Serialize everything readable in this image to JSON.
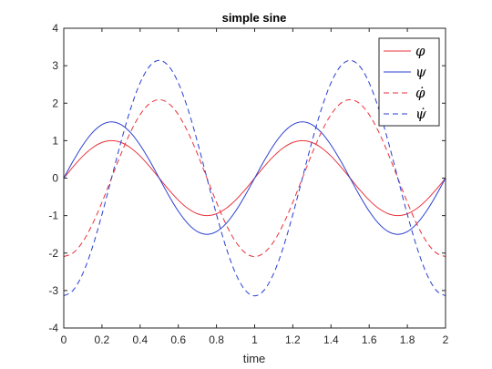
{
  "chart_data": {
    "type": "line",
    "title": "simple sine",
    "xlabel": "time",
    "ylabel": "",
    "xlim": [
      0,
      2
    ],
    "ylim": [
      -4,
      4
    ],
    "xticks": [
      0,
      0.2,
      0.4,
      0.6,
      0.8,
      1,
      1.2,
      1.4,
      1.6,
      1.8,
      2
    ],
    "xtick_labels": [
      "0",
      "0.2",
      "0.4",
      "0.6",
      "0.8",
      "1",
      "1.2",
      "1.4",
      "1.6",
      "1.8",
      "2"
    ],
    "yticks": [
      -4,
      -3,
      -2,
      -1,
      0,
      1,
      2,
      3,
      4
    ],
    "ytick_labels": [
      "-4",
      "-3",
      "-2",
      "-1",
      "0",
      "1",
      "2",
      "3",
      "4"
    ],
    "grid": false,
    "legend_position": "top-right",
    "x": [
      0,
      0.05,
      0.1,
      0.15,
      0.2,
      0.25,
      0.3,
      0.35,
      0.4,
      0.45,
      0.5,
      0.55,
      0.6,
      0.65,
      0.7,
      0.75,
      0.8,
      0.85,
      0.9,
      0.95,
      1,
      1.05,
      1.1,
      1.15,
      1.2,
      1.25,
      1.3,
      1.35,
      1.4,
      1.45,
      1.5,
      1.55,
      1.6,
      1.65,
      1.7,
      1.75,
      1.8,
      1.85,
      1.9,
      1.95,
      2
    ],
    "series": [
      {
        "name": "φ",
        "color": "#e8323c",
        "dash": "solid",
        "values": [
          0,
          0.309,
          0.588,
          0.809,
          0.951,
          1,
          0.951,
          0.809,
          0.588,
          0.309,
          0,
          -0.309,
          -0.588,
          -0.809,
          -0.951,
          -1,
          -0.951,
          -0.809,
          -0.588,
          -0.309,
          0,
          0.309,
          0.588,
          0.809,
          0.951,
          1,
          0.951,
          0.809,
          0.588,
          0.309,
          0,
          -0.309,
          -0.588,
          -0.809,
          -0.951,
          -1,
          -0.951,
          -0.809,
          -0.588,
          -0.309,
          0
        ]
      },
      {
        "name": "ψ",
        "color": "#2a3fcf",
        "dash": "solid",
        "values": [
          0,
          0.464,
          0.882,
          1.214,
          1.427,
          1.5,
          1.427,
          1.214,
          0.882,
          0.464,
          0,
          -0.464,
          -0.882,
          -1.214,
          -1.427,
          -1.5,
          -1.427,
          -1.214,
          -0.882,
          -0.464,
          0,
          0.464,
          0.882,
          1.214,
          1.427,
          1.5,
          1.427,
          1.214,
          0.882,
          0.464,
          0,
          -0.464,
          -0.882,
          -1.214,
          -1.427,
          -1.5,
          -1.427,
          -1.214,
          -0.882,
          -0.464,
          0
        ]
      },
      {
        "name": "φ̇",
        "color": "#e8323c",
        "dash": "dashed",
        "values": [
          -2.094,
          -1.992,
          -1.694,
          -1.231,
          -0.647,
          0,
          0.647,
          1.231,
          1.694,
          1.992,
          2.094,
          1.992,
          1.694,
          1.231,
          0.647,
          0,
          -0.647,
          -1.231,
          -1.694,
          -1.992,
          -2.094,
          -1.992,
          -1.694,
          -1.231,
          -0.647,
          0,
          0.647,
          1.231,
          1.694,
          1.992,
          2.094,
          1.992,
          1.694,
          1.231,
          0.647,
          0,
          -0.647,
          -1.231,
          -1.694,
          -1.992,
          -2.094
        ]
      },
      {
        "name": "ψ̇",
        "color": "#2a3fcf",
        "dash": "dashed",
        "values": [
          -3.142,
          -2.988,
          -2.542,
          -1.847,
          -0.971,
          0,
          0.971,
          1.847,
          2.542,
          2.988,
          3.142,
          2.988,
          2.542,
          1.847,
          0.971,
          0,
          -0.971,
          -1.847,
          -2.542,
          -2.988,
          -3.142,
          -2.988,
          -2.542,
          -1.847,
          -0.971,
          0,
          0.971,
          1.847,
          2.542,
          2.988,
          3.142,
          2.988,
          2.542,
          1.847,
          0.971,
          0,
          -0.971,
          -1.847,
          -2.542,
          -2.988,
          -3.142
        ]
      }
    ]
  }
}
